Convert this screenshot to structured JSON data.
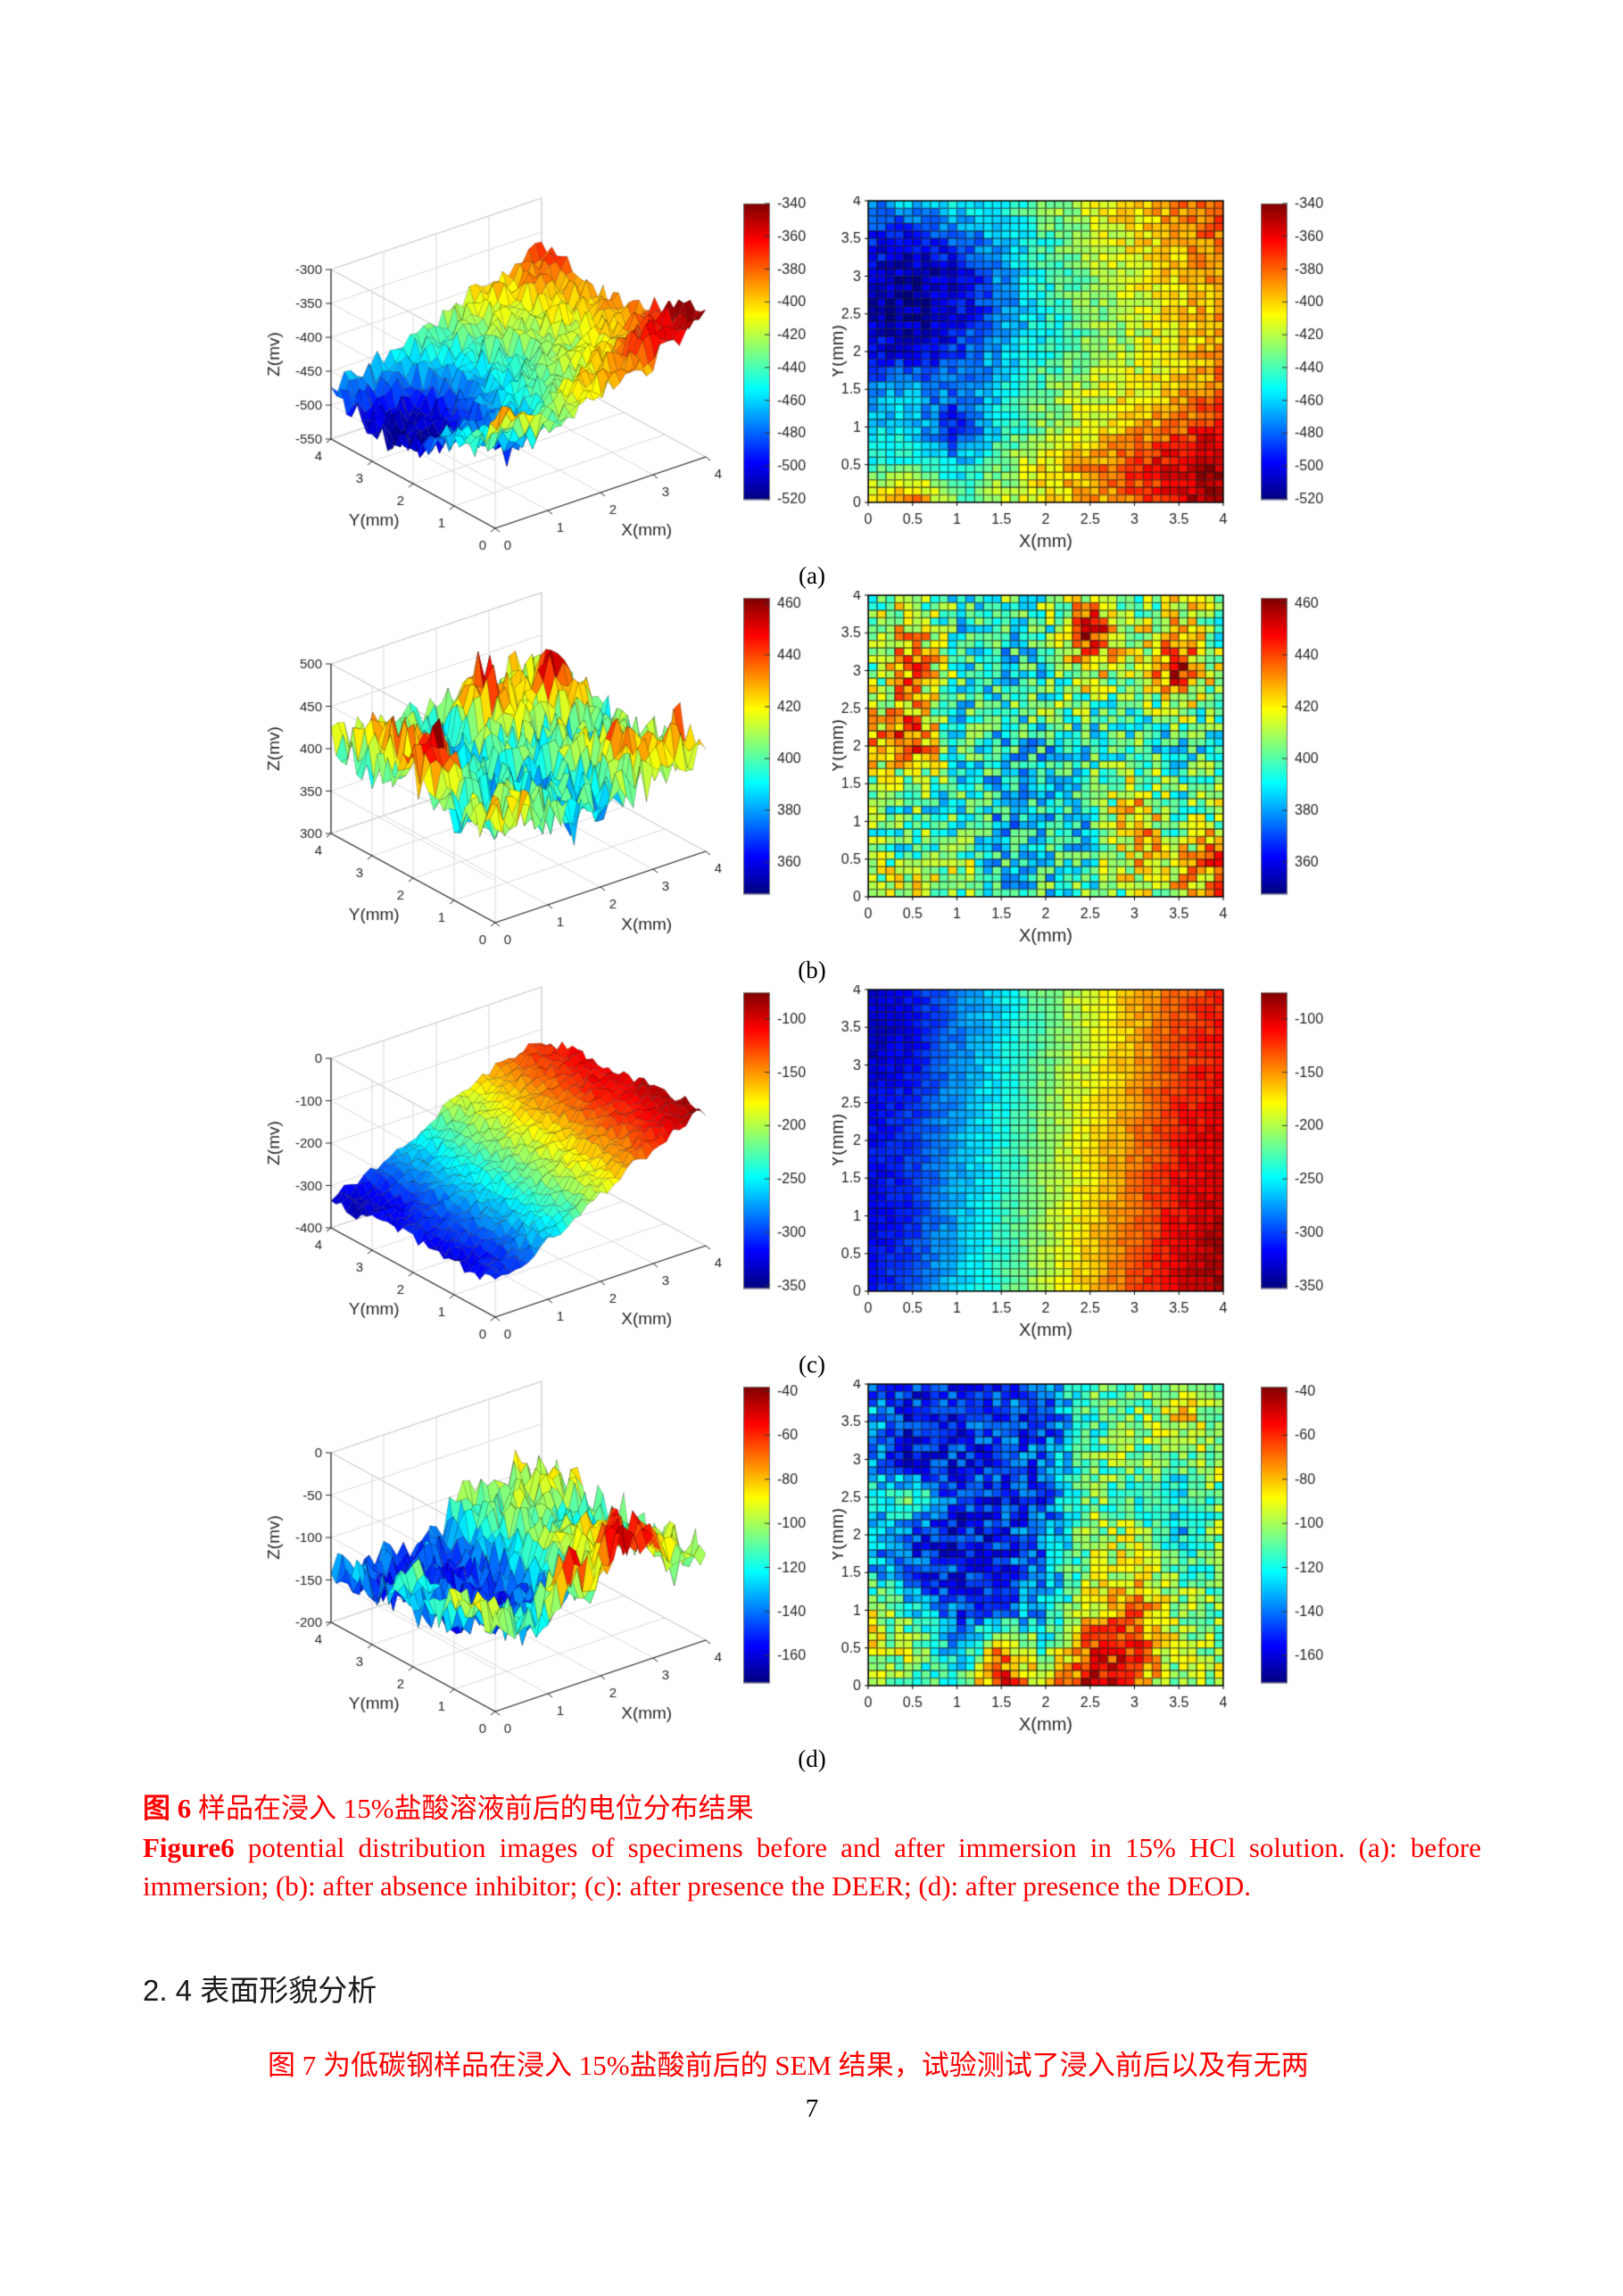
{
  "page": {
    "number": "7"
  },
  "colors": {
    "caption_red": "#ff0000",
    "text_black": "#1a1a1a",
    "colormap": "jet"
  },
  "figure": {
    "caption_zh_label": "图 6",
    "caption_zh_text": " 样品在浸入 15%盐酸溶液前后的电位分布结果",
    "caption_en_label": "Figure6",
    "caption_en_text": " potential distribution images of specimens before and after immersion in 15% HCl solution. (a): before immersion; (b): after absence inhibitor; (c): after presence the DEER; (d): after presence the DEOD."
  },
  "section": {
    "heading": "2. 4 表面形貌分析"
  },
  "paragraph": {
    "text": "图 7 为低碳钢样品在浸入 15%盐酸前后的 SEM 结果，试验测试了浸入前后以及有无两"
  },
  "chart_data": [
    {
      "panel_label": "(a)",
      "condition": "before immersion",
      "type": "heatmap",
      "xlabel": "X(mm)",
      "ylabel": "Y(mm)",
      "xlim": [
        0,
        4
      ],
      "ylim": [
        0,
        4
      ],
      "axis_ticks": [
        0,
        0.5,
        1,
        1.5,
        2,
        2.5,
        3,
        3.5,
        4
      ],
      "surface": {
        "zlabel": "Z(mv)",
        "zlim": [
          -550,
          -300
        ],
        "zticks": [
          -300,
          -350,
          -400,
          -450,
          -500,
          -550
        ],
        "xticks": [
          0,
          1,
          2,
          3,
          4
        ],
        "yticks": [
          4,
          3,
          2,
          1,
          0
        ]
      },
      "colorbar": {
        "vmin": -520,
        "vmax": -340,
        "ticks": [
          -340,
          -360,
          -380,
          -400,
          -420,
          -440,
          -460,
          -480,
          -500,
          -520
        ]
      },
      "grid_cells": 40,
      "grid_order": "rows y=4(top)..y=0(bottom), cols x=0..4, units mV",
      "values_coarse": [
        [
          -470,
          -462,
          -455,
          -448,
          -430,
          -412,
          -400,
          -388,
          -372
        ],
        [
          -492,
          -496,
          -482,
          -462,
          -440,
          -420,
          -406,
          -392,
          -380
        ],
        [
          -502,
          -512,
          -505,
          -470,
          -446,
          -426,
          -410,
          -400,
          -386
        ],
        [
          -506,
          -516,
          -500,
          -476,
          -450,
          -430,
          -416,
          -404,
          -390
        ],
        [
          -496,
          -502,
          -490,
          -466,
          -446,
          -430,
          -420,
          -404,
          -390
        ],
        [
          -472,
          -466,
          -476,
          -456,
          -432,
          -416,
          -408,
          -398,
          -380
        ],
        [
          -462,
          -456,
          -502,
          -450,
          -426,
          -410,
          -398,
          -380,
          -364
        ],
        [
          -446,
          -440,
          -462,
          -430,
          -402,
          -390,
          -372,
          -356,
          -346
        ],
        [
          -396,
          -376,
          -432,
          -420,
          -406,
          -394,
          -380,
          -360,
          -346
        ]
      ],
      "noise_heat": 12,
      "noise_surf": 18
    },
    {
      "panel_label": "(b)",
      "condition": "after absence inhibitor",
      "type": "heatmap",
      "xlabel": "X(mm)",
      "ylabel": "Y(mm)",
      "xlim": [
        0,
        4
      ],
      "ylim": [
        0,
        4
      ],
      "axis_ticks": [
        0,
        0.5,
        1,
        1.5,
        2,
        2.5,
        3,
        3.5,
        4
      ],
      "surface": {
        "zlabel": "Z(mv)",
        "zlim": [
          300,
          500
        ],
        "zticks": [
          500,
          450,
          400,
          350,
          300
        ],
        "xticks": [
          0,
          1,
          2,
          3,
          4
        ],
        "yticks": [
          4,
          3,
          2,
          1,
          0
        ]
      },
      "colorbar": {
        "vmin": 348,
        "vmax": 462,
        "ticks": [
          460,
          440,
          420,
          400,
          380,
          360
        ]
      },
      "grid_cells": 40,
      "grid_order": "rows y=4(top)..y=0(bottom), cols x=0..4, units mV",
      "values_coarse": [
        [
          400,
          406,
          396,
          400,
          402,
          420,
          402,
          416,
          406
        ],
        [
          404,
          432,
          394,
          392,
          396,
          456,
          410,
          422,
          400
        ],
        [
          396,
          442,
          400,
          386,
          396,
          426,
          406,
          452,
          406
        ],
        [
          416,
          426,
          392,
          396,
          400,
          400,
          396,
          412,
          396
        ],
        [
          422,
          452,
          396,
          390,
          390,
          396,
          400,
          390,
          400
        ],
        [
          410,
          400,
          396,
          390,
          386,
          396,
          410,
          400,
          406
        ],
        [
          400,
          396,
          400,
          386,
          386,
          390,
          432,
          402,
          412
        ],
        [
          406,
          400,
          410,
          390,
          390,
          396,
          422,
          416,
          442
        ],
        [
          416,
          426,
          406,
          386,
          396,
          400,
          410,
          422,
          432
        ]
      ],
      "noise_heat": 18,
      "noise_surf": 28
    },
    {
      "panel_label": "(c)",
      "condition": "after presence the DEER",
      "type": "heatmap",
      "xlabel": "X(mm)",
      "ylabel": "Y(mm)",
      "xlim": [
        0,
        4
      ],
      "ylim": [
        0,
        4
      ],
      "axis_ticks": [
        0,
        0.5,
        1,
        1.5,
        2,
        2.5,
        3,
        3.5,
        4
      ],
      "surface": {
        "zlabel": "Z(mv)",
        "zlim": [
          -400,
          0
        ],
        "zticks": [
          0,
          -100,
          -200,
          -300,
          -400
        ],
        "xticks": [
          0,
          1,
          2,
          3,
          4
        ],
        "yticks": [
          4,
          3,
          2,
          1,
          0
        ]
      },
      "colorbar": {
        "vmin": -352,
        "vmax": -75,
        "ticks": [
          -100,
          -150,
          -200,
          -250,
          -300,
          -350
        ]
      },
      "grid_cells": 40,
      "grid_order": "rows y=4(top)..y=0(bottom), cols x=0..4, units mV",
      "values_coarse": [
        [
          -330,
          -312,
          -282,
          -252,
          -216,
          -186,
          -160,
          -136,
          -120
        ],
        [
          -336,
          -320,
          -286,
          -256,
          -220,
          -190,
          -160,
          -130,
          -115
        ],
        [
          -330,
          -316,
          -280,
          -250,
          -216,
          -186,
          -156,
          -126,
          -110
        ],
        [
          -320,
          -306,
          -276,
          -246,
          -210,
          -180,
          -150,
          -120,
          -105
        ],
        [
          -316,
          -300,
          -270,
          -240,
          -210,
          -176,
          -146,
          -116,
          -100
        ],
        [
          -322,
          -302,
          -272,
          -240,
          -206,
          -176,
          -140,
          -110,
          -96
        ],
        [
          -326,
          -306,
          -270,
          -236,
          -200,
          -170,
          -140,
          -110,
          -90
        ],
        [
          -320,
          -300,
          -266,
          -236,
          -200,
          -166,
          -136,
          -106,
          -86
        ],
        [
          -316,
          -296,
          -260,
          -230,
          -196,
          -160,
          -130,
          -100,
          -80
        ]
      ],
      "noise_heat": 9,
      "noise_surf": 14
    },
    {
      "panel_label": "(d)",
      "condition": "after presence the DEOD",
      "type": "heatmap",
      "xlabel": "X(mm)",
      "ylabel": "Y(mm)",
      "xlim": [
        0,
        4
      ],
      "ylim": [
        0,
        4
      ],
      "axis_ticks": [
        0,
        0.5,
        1,
        1.5,
        2,
        2.5,
        3,
        3.5,
        4
      ],
      "surface": {
        "zlabel": "Z(mv)",
        "zlim": [
          -200,
          0
        ],
        "zticks": [
          0,
          -50,
          -100,
          -150,
          -200
        ],
        "xticks": [
          0,
          1,
          2,
          3,
          4
        ],
        "yticks": [
          4,
          3,
          2,
          1,
          0
        ]
      },
      "colorbar": {
        "vmin": -172,
        "vmax": -38,
        "ticks": [
          -40,
          -60,
          -80,
          -100,
          -120,
          -140,
          -160
        ]
      },
      "grid_cells": 40,
      "grid_order": "rows y=4(top)..y=0(bottom), cols x=0..4, units mV",
      "values_coarse": [
        [
          -140,
          -150,
          -146,
          -150,
          -140,
          -100,
          -110,
          -92,
          -106
        ],
        [
          -130,
          -152,
          -150,
          -146,
          -146,
          -116,
          -106,
          -86,
          -100
        ],
        [
          -136,
          -156,
          -150,
          -150,
          -140,
          -110,
          -100,
          -112,
          -96
        ],
        [
          -120,
          -112,
          -150,
          -150,
          -146,
          -106,
          -116,
          -120,
          -106
        ],
        [
          -130,
          -146,
          -156,
          -150,
          -140,
          -100,
          -96,
          -130,
          -100
        ],
        [
          -126,
          -146,
          -150,
          -150,
          -136,
          -96,
          -86,
          -106,
          -110
        ],
        [
          -86,
          -120,
          -146,
          -146,
          -130,
          -90,
          -70,
          -100,
          -106
        ],
        [
          -92,
          -100,
          -136,
          -76,
          -110,
          -60,
          -56,
          -96,
          -100
        ],
        [
          -96,
          -106,
          -120,
          -56,
          -90,
          -50,
          -66,
          -110,
          -92
        ]
      ],
      "noise_heat": 15,
      "noise_surf": 22
    }
  ]
}
